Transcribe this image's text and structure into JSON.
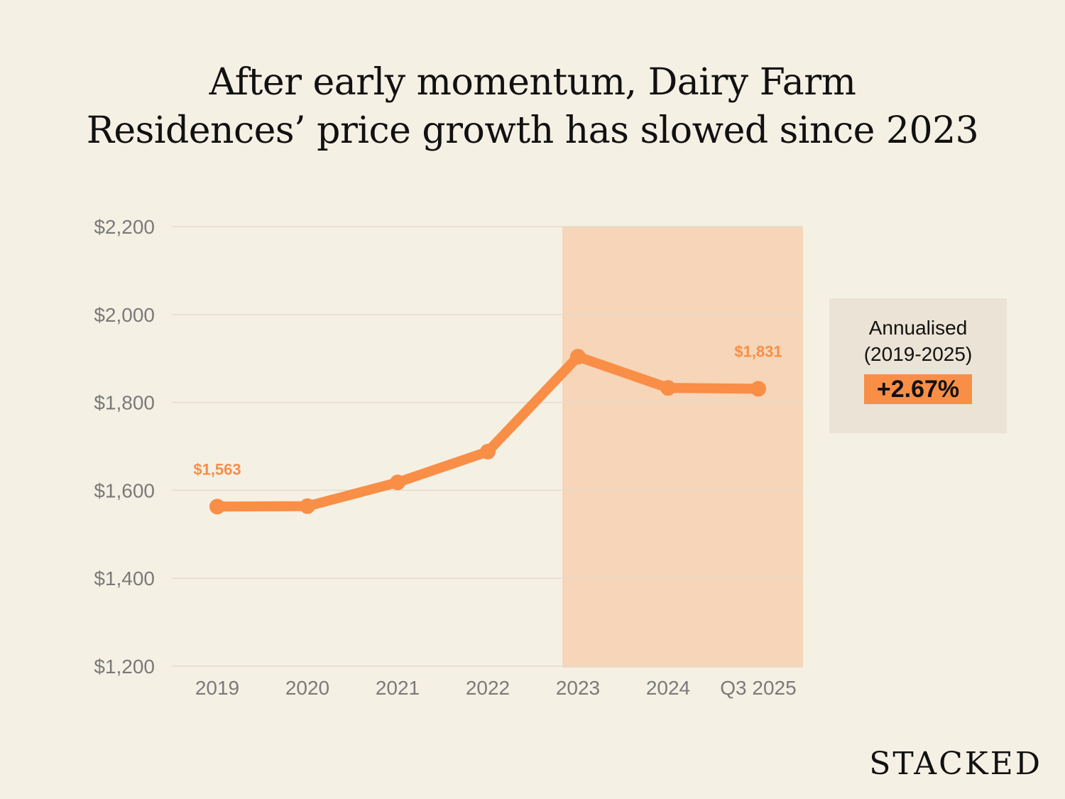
{
  "title_line1": "After early momentum, Dairy Farm",
  "title_line2": "Residences’ price growth has slowed since 2023",
  "chart_data": {
    "type": "line",
    "categories": [
      "2019",
      "2020",
      "2021",
      "2022",
      "2023",
      "2024",
      "Q3 2025"
    ],
    "values": [
      1563,
      1564,
      1618,
      1688,
      1904,
      1833,
      1831
    ],
    "data_labels": [
      {
        "index": 0,
        "text": "$1,563"
      },
      {
        "index": 6,
        "text": "$1,831"
      }
    ],
    "yticks": [
      1200,
      1400,
      1600,
      1800,
      2000,
      2200
    ],
    "ytick_labels": [
      "$1,200",
      "$1,400",
      "$1,600",
      "$1,800",
      "$2,000",
      "$2,200"
    ],
    "ylim": [
      1200,
      2200
    ],
    "grid": "horizontal",
    "highlight_range": [
      "2023",
      "Q3 2025"
    ],
    "colors": {
      "line": "#f98e47",
      "highlight": "#f6d5b8",
      "grid": "#e3dccd",
      "background": "#f5f0e4"
    }
  },
  "annotation": {
    "line1": "Annualised",
    "line2": "(2019-2025)",
    "value": "+2.67%"
  },
  "logo": "STACKED"
}
